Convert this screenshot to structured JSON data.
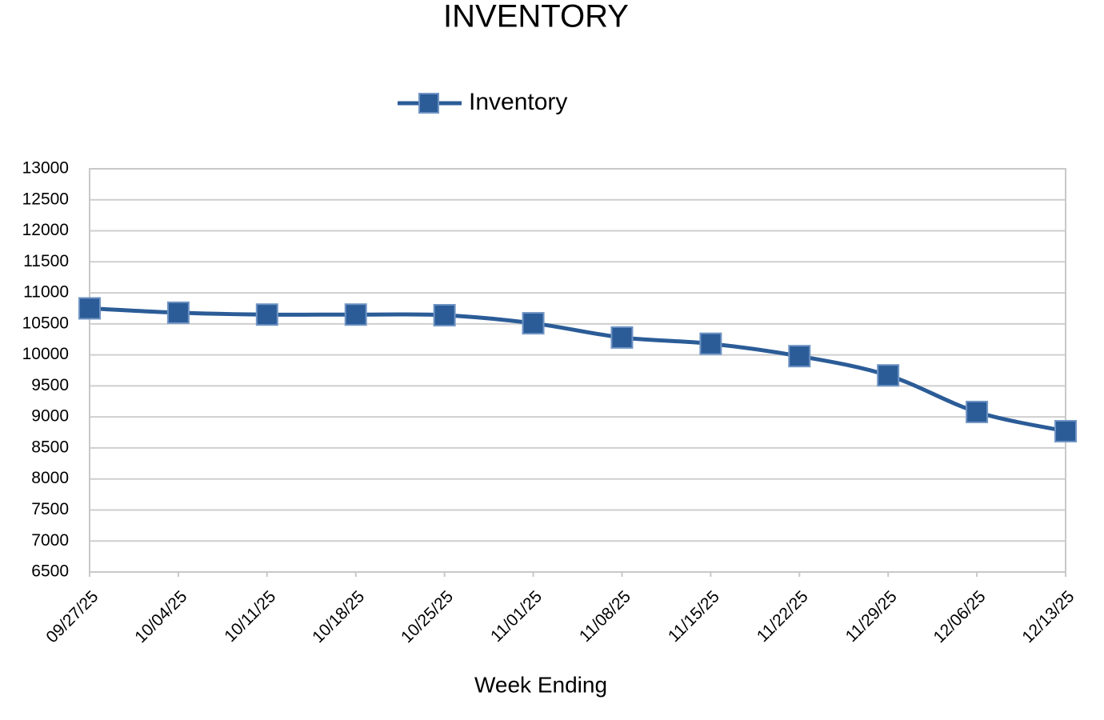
{
  "chart_data": {
    "type": "line",
    "title": "INVENTORY",
    "x_label": "Week Ending",
    "categories": [
      "09/27/25",
      "10/04/25",
      "10/11/25",
      "10/18/25",
      "10/25/25",
      "11/01/25",
      "11/08/25",
      "11/15/25",
      "11/22/25",
      "11/29/25",
      "12/06/25",
      "12/13/25"
    ],
    "series": [
      {
        "name": "Inventory",
        "color": "#2b5c97",
        "values": [
          10750,
          10680,
          10650,
          10650,
          10640,
          10510,
          10280,
          10180,
          9980,
          9670,
          9080,
          8770
        ]
      }
    ],
    "ylim": [
      6500,
      13000
    ],
    "yticks": [
      6500,
      7000,
      7500,
      8000,
      8500,
      9000,
      9500,
      10000,
      10500,
      11000,
      11500,
      12000,
      12500,
      13000
    ],
    "grid": true,
    "legend": "top"
  }
}
